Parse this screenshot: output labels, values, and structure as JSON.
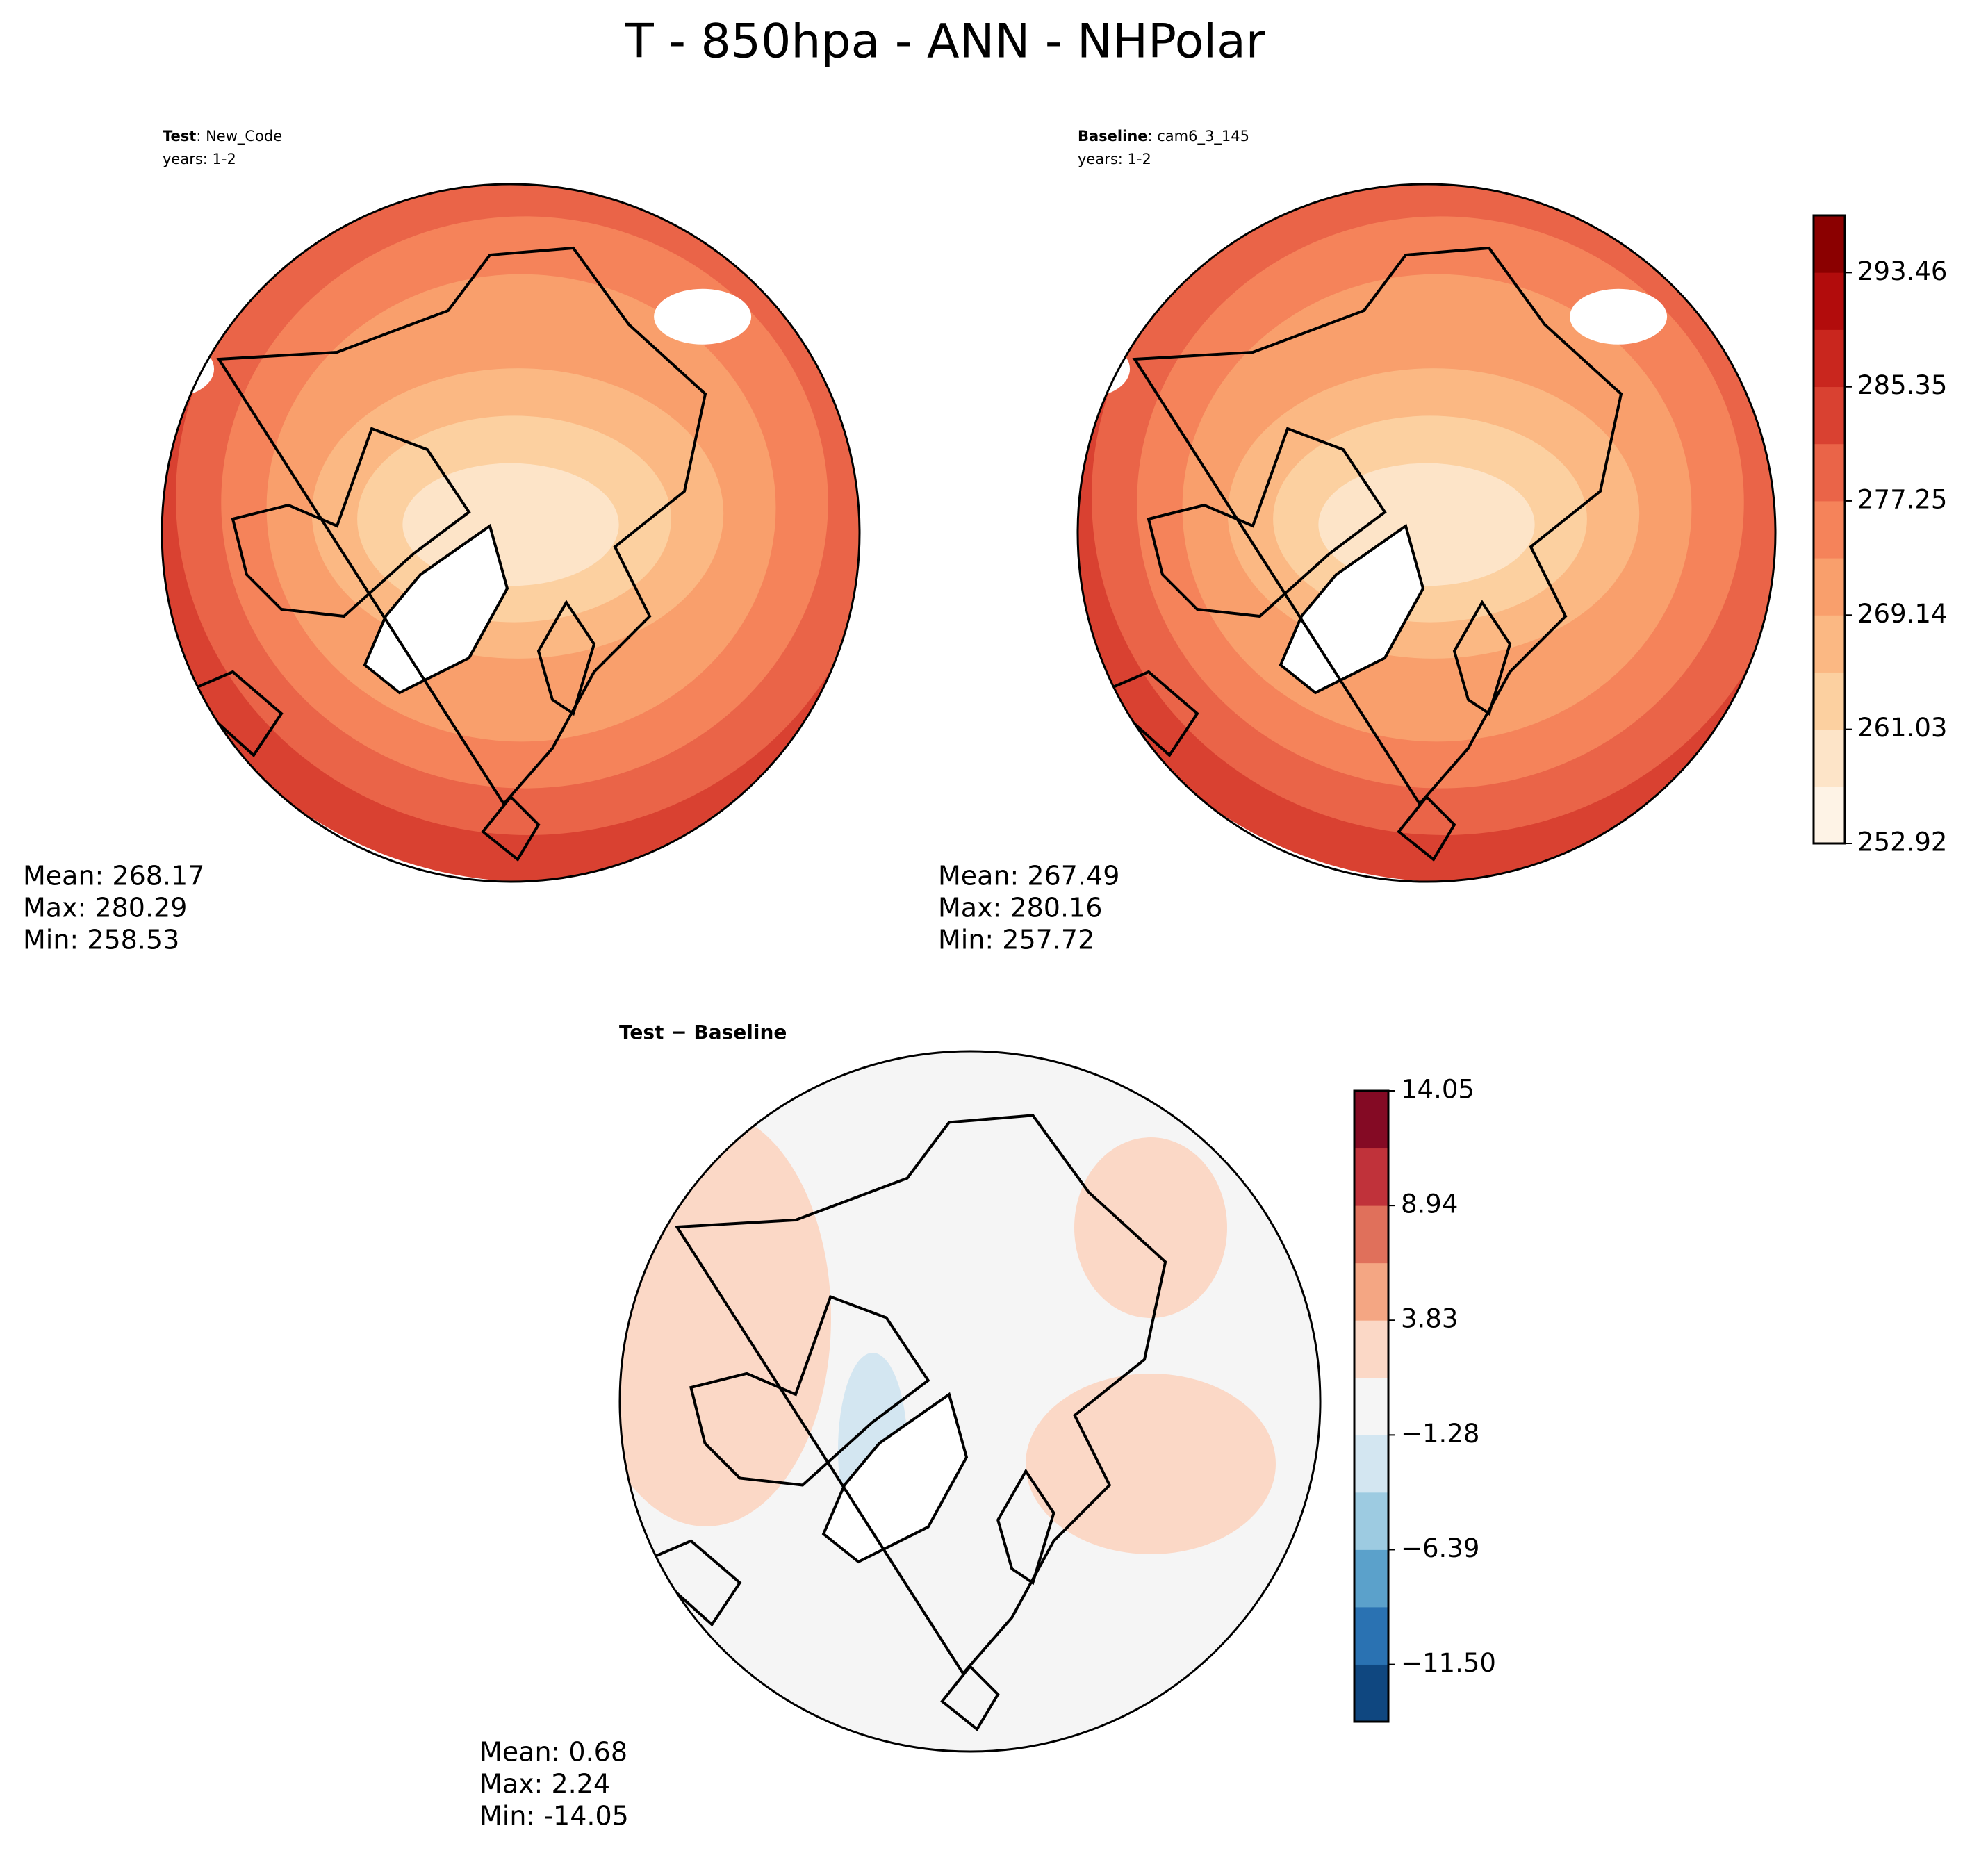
{
  "title": "T - 850hpa - ANN - NHPolar",
  "panels": [
    {
      "label_bold": "Test",
      "label_text": ": New_Code",
      "years": "years: 1-2",
      "stats": [
        "Mean: 268.17",
        "Max: 280.29",
        "Min: 258.53"
      ],
      "colorbar": 0
    },
    {
      "label_bold": "Baseline",
      "label_text": ": cam6_3_145",
      "years": "years: 1-2",
      "stats": [
        "Mean: 267.49",
        "Max: 280.16",
        "Min: 257.72"
      ],
      "colorbar": 0
    },
    {
      "label_bold": "Test − Baseline",
      "stats": [
        "Mean:  0.68",
        "Max:  2.24",
        "Min: -14.05"
      ],
      "colorbar": 1
    }
  ],
  "colorbars": [
    {
      "lim": [
        252.92,
        297.525
      ],
      "ticks": [
        252.92,
        261.03,
        269.14,
        277.25,
        285.35,
        293.46
      ],
      "colors": [
        "#fef3e6",
        "#fde4c8",
        "#fcd0a0",
        "#fbb883",
        "#f99f6c",
        "#f5835a",
        "#ea6448",
        "#d94131",
        "#c9261e",
        "#b20c0c",
        "#8b0000"
      ]
    },
    {
      "lim": [
        -14.05,
        14.05
      ],
      "ticks": [
        {
          "value": -11.5,
          "label": "−11.50"
        },
        {
          "value": -6.39,
          "label": "−6.39"
        },
        {
          "value": -1.28,
          "label": "−1.28"
        },
        3.83,
        8.94,
        14.05
      ],
      "colors": [
        "#0f4780",
        "#2a72b2",
        "#5ba1cb",
        "#9dcbe1",
        "#d3e6f1",
        "#f5f5f5",
        "#fbd8c6",
        "#f4a683",
        "#e0705b",
        "#c0323a",
        "#840a24"
      ]
    }
  ]
}
